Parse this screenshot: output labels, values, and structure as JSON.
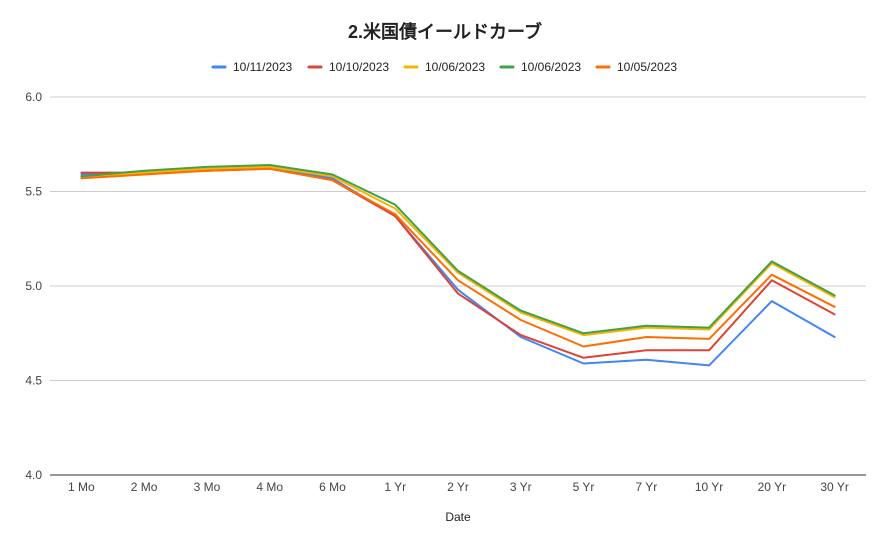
{
  "chart_data": {
    "type": "line",
    "title": "2.米国債イールドカーブ",
    "xlabel": "Date",
    "ylabel": "",
    "ylim": [
      4.0,
      6.0
    ],
    "yticks": [
      "4.0",
      "4.5",
      "5.0",
      "5.5",
      "6.0"
    ],
    "grid": true,
    "legend_position": "top",
    "categories": [
      "1 Mo",
      "2 Mo",
      "3 Mo",
      "4 Mo",
      "6 Mo",
      "1 Yr",
      "2 Yr",
      "3 Yr",
      "5 Yr",
      "7 Yr",
      "10 Yr",
      "20 Yr",
      "30 Yr"
    ],
    "series": [
      {
        "name": "10/11/2023",
        "color": "#4285f4",
        "values": [
          5.59,
          5.6,
          5.61,
          5.63,
          5.57,
          5.37,
          4.98,
          4.73,
          4.59,
          4.61,
          4.58,
          4.92,
          4.73
        ]
      },
      {
        "name": "10/10/2023",
        "color": "#db4437",
        "values": [
          5.6,
          5.6,
          5.61,
          5.62,
          5.56,
          5.37,
          4.96,
          4.74,
          4.62,
          4.66,
          4.66,
          5.03,
          4.85
        ]
      },
      {
        "name": "10/06/2023",
        "color": "#f4b400",
        "values": [
          5.58,
          5.6,
          5.62,
          5.63,
          5.58,
          5.41,
          5.07,
          4.86,
          4.74,
          4.78,
          4.77,
          5.12,
          4.94
        ]
      },
      {
        "name": "10/06/2023",
        "color": "#43a047",
        "values": [
          5.58,
          5.61,
          5.63,
          5.64,
          5.59,
          5.43,
          5.08,
          4.87,
          4.75,
          4.79,
          4.78,
          5.13,
          4.95
        ]
      },
      {
        "name": "10/05/2023",
        "color": "#ff6d01",
        "values": [
          5.57,
          5.59,
          5.61,
          5.62,
          5.56,
          5.38,
          5.03,
          4.82,
          4.68,
          4.73,
          4.72,
          5.06,
          4.89
        ]
      }
    ]
  }
}
